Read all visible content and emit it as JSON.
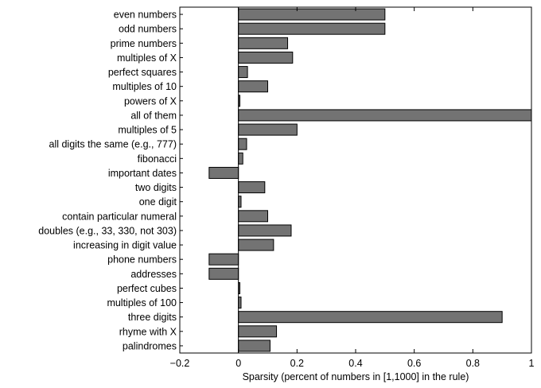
{
  "chart_data": {
    "type": "bar",
    "orientation": "horizontal",
    "categories": [
      "even numbers",
      "odd numbers",
      "prime numbers",
      "multiples of X",
      "perfect squares",
      "multiples of 10",
      "powers of X",
      "all of them",
      "multiples of 5",
      "all digits the same (e.g., 777)",
      "fibonacci",
      "important dates",
      "two digits",
      "one digit",
      "contain particular numeral",
      "doubles (e.g., 33, 330, not 303)",
      "increasing in digit value",
      "phone numbers",
      "addresses",
      "perfect cubes",
      "multiples of 100",
      "three digits",
      "rhyme with X",
      "palindromes"
    ],
    "values": [
      0.5,
      0.5,
      0.168,
      0.185,
      0.031,
      0.1,
      0.005,
      1.0,
      0.2,
      0.028,
      0.015,
      -0.1,
      0.09,
      0.009,
      0.1,
      0.18,
      0.12,
      -0.1,
      -0.1,
      0.005,
      0.009,
      0.9,
      0.13,
      0.108
    ],
    "xlabel": "Sparsity (percent of numbers in [1,1000] in the rule)",
    "ylabel": "",
    "title": "",
    "xlim": [
      -0.2,
      1
    ],
    "xticks": [
      -0.2,
      0,
      0.2,
      0.4,
      0.6,
      0.8,
      1
    ],
    "xtick_labels": [
      "−0.2",
      "0",
      "0.2",
      "0.4",
      "0.6",
      "0.8",
      "1"
    ],
    "grid": false,
    "bar_color": "#737373"
  }
}
